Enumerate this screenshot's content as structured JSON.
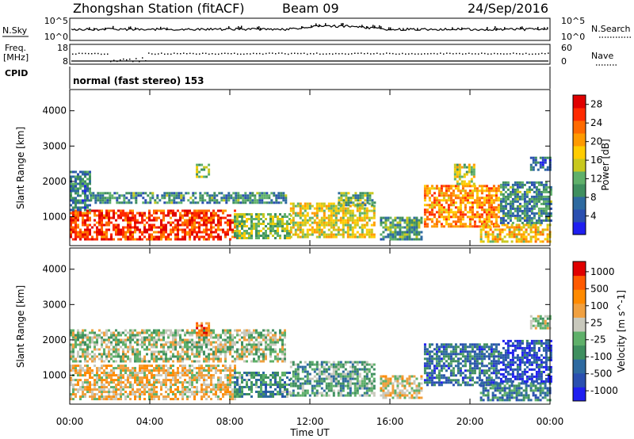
{
  "header": {
    "station": "Zhongshan Station (fitACF)",
    "beam": "Beam 09",
    "date": "24/Sep/2016"
  },
  "top_panels": {
    "nsky_label": "N.Sky",
    "nsearch_label": "N.Search",
    "nsky_ticks": [
      "10^5",
      "10^0"
    ],
    "nsky_right_ticks": [
      "10^5",
      "10^0"
    ],
    "freq_label_1": "Freq.",
    "freq_label_2": "[MHz]",
    "freq_ticks": [
      "18",
      "8"
    ],
    "nave_ticks": [
      "60",
      "0"
    ],
    "nave_label": "Nave",
    "cpid_label": "CPID",
    "cpid_text": "normal (fast stereo) 153"
  },
  "x_axis": {
    "label": "Time UT",
    "ticks": [
      "00:00",
      "04:00",
      "08:00",
      "12:00",
      "16:00",
      "20:00",
      "00:00"
    ],
    "range_hours": [
      0,
      24
    ]
  },
  "chart_data": [
    {
      "type": "heatmap",
      "name": "power",
      "ylabel": "Slant Range [km]",
      "yticks": [
        "1000",
        "2000",
        "3000",
        "4000"
      ],
      "ylim": [
        180,
        4600
      ],
      "colorbar": {
        "label": "Power [dB]",
        "ticks": [
          "4",
          "8",
          "12",
          "16",
          "20",
          "24",
          "28"
        ],
        "colors": [
          "#1f1ff0",
          "#2a4fb0",
          "#2e6aa0",
          "#3f8f5f",
          "#5fb06a",
          "#c8c81e",
          "#ffcc00",
          "#ff9a00",
          "#ff6a00",
          "#ff2a00",
          "#e00000"
        ],
        "range": [
          0,
          30
        ]
      },
      "regions": [
        {
          "t0": 0.0,
          "t1": 8.2,
          "r0": 350,
          "r1": 1200,
          "level": 0.85
        },
        {
          "t0": 0.0,
          "t1": 1.0,
          "r0": 1200,
          "r1": 2300,
          "level": 0.25
        },
        {
          "t0": 1.0,
          "t1": 10.8,
          "r0": 1400,
          "r1": 1700,
          "level": 0.3
        },
        {
          "t0": 6.3,
          "t1": 7.0,
          "r0": 2100,
          "r1": 2500,
          "level": 0.45
        },
        {
          "t0": 8.2,
          "t1": 11.0,
          "r0": 400,
          "r1": 1100,
          "level": 0.45
        },
        {
          "t0": 11.0,
          "t1": 15.2,
          "r0": 400,
          "r1": 1400,
          "level": 0.55
        },
        {
          "t0": 13.4,
          "t1": 15.2,
          "r0": 1300,
          "r1": 1700,
          "level": 0.4
        },
        {
          "t0": 15.5,
          "t1": 17.6,
          "r0": 350,
          "r1": 1000,
          "level": 0.35
        },
        {
          "t0": 17.7,
          "t1": 21.5,
          "r0": 700,
          "r1": 1900,
          "level": 0.7
        },
        {
          "t0": 19.2,
          "t1": 20.2,
          "r0": 1900,
          "r1": 2500,
          "level": 0.5
        },
        {
          "t0": 20.5,
          "t1": 24.0,
          "r0": 300,
          "r1": 800,
          "level": 0.6
        },
        {
          "t0": 21.5,
          "t1": 24.0,
          "r0": 800,
          "r1": 2000,
          "level": 0.3
        },
        {
          "t0": 23.0,
          "t1": 24.0,
          "r0": 2300,
          "r1": 2700,
          "level": 0.2
        }
      ]
    },
    {
      "type": "heatmap",
      "name": "velocity",
      "ylabel": "Slant Range [km]",
      "yticks": [
        "1000",
        "2000",
        "3000",
        "4000"
      ],
      "ylim": [
        180,
        4600
      ],
      "colorbar": {
        "label": "Velocity [m s^-1]",
        "ticks": [
          "1000",
          "500",
          "100",
          "25",
          "-25",
          "-100",
          "-500",
          "-1000"
        ],
        "colors": [
          "#1f1ff0",
          "#2a4fb0",
          "#2e6aa0",
          "#3f8f5f",
          "#5fb06a",
          "#c8c8bc",
          "#f0a040",
          "#ff8a00",
          "#ff5a00",
          "#e00000"
        ],
        "range": [
          -1200,
          1200
        ]
      },
      "regions": [
        {
          "t0": 0.0,
          "t1": 8.2,
          "r0": 350,
          "r1": 1300,
          "level": 0.62
        },
        {
          "t0": 0.0,
          "t1": 10.8,
          "r0": 1400,
          "r1": 2300,
          "level": 0.5
        },
        {
          "t0": 6.3,
          "t1": 7.0,
          "r0": 2100,
          "r1": 2500,
          "level": 0.75
        },
        {
          "t0": 8.2,
          "t1": 11.0,
          "r0": 400,
          "r1": 1100,
          "level": 0.35
        },
        {
          "t0": 11.0,
          "t1": 15.2,
          "r0": 400,
          "r1": 1400,
          "level": 0.4
        },
        {
          "t0": 15.5,
          "t1": 17.6,
          "r0": 350,
          "r1": 1000,
          "level": 0.6
        },
        {
          "t0": 17.7,
          "t1": 21.5,
          "r0": 700,
          "r1": 1900,
          "level": 0.25
        },
        {
          "t0": 20.5,
          "t1": 24.0,
          "r0": 300,
          "r1": 800,
          "level": 0.3
        },
        {
          "t0": 21.5,
          "t1": 24.0,
          "r0": 800,
          "r1": 2000,
          "level": 0.15
        },
        {
          "t0": 23.0,
          "t1": 24.0,
          "r0": 2300,
          "r1": 2700,
          "level": 0.5
        }
      ]
    }
  ]
}
